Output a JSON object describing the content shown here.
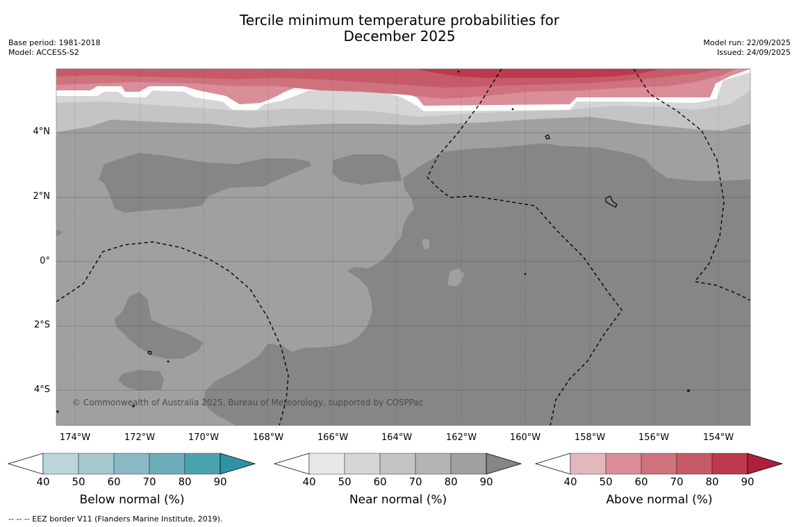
{
  "title": {
    "line1": "Tercile minimum temperature probabilities for",
    "line2": "December 2025"
  },
  "meta": {
    "base_period": "Base period: 1981-2018",
    "model": "Model: ACCESS-S2",
    "model_run": "Model run: 22/09/2025",
    "issued": "Issued: 24/09/2025"
  },
  "map": {
    "latitudes": [
      "4°N",
      "2°N",
      "0°",
      "2°S",
      "4°S"
    ],
    "longitudes": [
      "174°W",
      "172°W",
      "170°W",
      "168°W",
      "166°W",
      "164°W",
      "162°W",
      "160°W",
      "158°W",
      "156°W",
      "154°W"
    ],
    "copyright": "© Commonwealth of Australia 2025, Bureau of Meteorology, supported by COSPPac"
  },
  "colorbars": [
    {
      "label": "Below normal (%)",
      "ticks": [
        "40",
        "50",
        "60",
        "70",
        "80",
        "90"
      ],
      "colors": [
        "#ffffff",
        "#bcd5dc",
        "#a6c7cd",
        "#8ab8c4",
        "#6cadba",
        "#4da2b0",
        "#2f93a6"
      ]
    },
    {
      "label": "Near normal (%)",
      "ticks": [
        "40",
        "50",
        "60",
        "70",
        "80",
        "90"
      ],
      "colors": [
        "#ffffff",
        "#e8e8e8",
        "#d6d6d6",
        "#c4c4c4",
        "#b4b4b4",
        "#a0a0a0",
        "#868686"
      ]
    },
    {
      "label": "Above normal (%)",
      "ticks": [
        "40",
        "50",
        "60",
        "70",
        "80",
        "90"
      ],
      "colors": [
        "#ffffff",
        "#e3b8bd",
        "#d98e98",
        "#ce737e",
        "#c65a68",
        "#bb3a4e",
        "#ad1f3a"
      ]
    }
  ],
  "footnote": "-- -- -- EEZ border V11 (Flanders Marine Institute, 2019)."
}
